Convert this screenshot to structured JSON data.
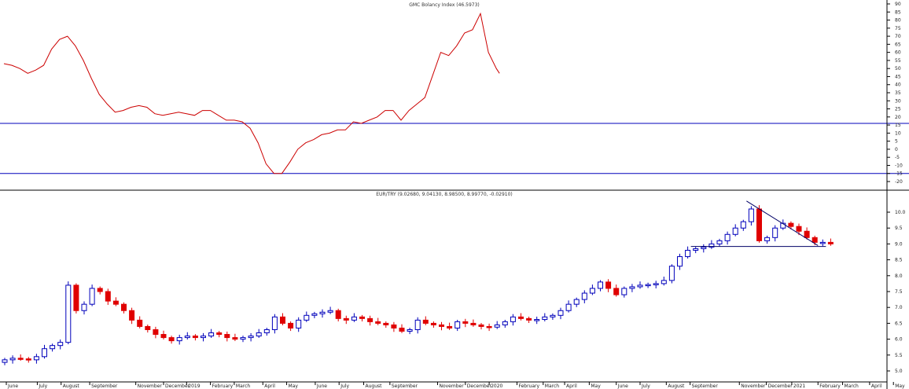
{
  "colors": {
    "indicator_line": "#cc0000",
    "threshold_line": "#0000bb",
    "candle_up": "#0000bb",
    "candle_down": "#e00000",
    "trendline": "#000066",
    "axis": "#000000"
  },
  "chart_data": [
    {
      "type": "line",
      "title": "GMC Bolancy Index (46.5973)",
      "ylim": [
        -25,
        92
      ],
      "yticks": [
        90,
        85,
        80,
        75,
        70,
        65,
        60,
        55,
        50,
        45,
        40,
        35,
        30,
        25,
        20,
        15,
        10,
        5,
        0,
        -5,
        -10,
        -15,
        -20
      ],
      "thresholds": [
        16,
        -15
      ],
      "series": [
        {
          "x": [
            0,
            0.5,
            1,
            1.5,
            2,
            2.5,
            3,
            3.5,
            4,
            4.5,
            5,
            5.5,
            6,
            6.5,
            7,
            7.5,
            8,
            8.5,
            9,
            9.5,
            10,
            10.5,
            11,
            11.5,
            12,
            12.5,
            13,
            13.5,
            14,
            14.5,
            15,
            15.5,
            16,
            16.5,
            17,
            17.5,
            18,
            18.5,
            19,
            19.5,
            20,
            20.5,
            21,
            21.5,
            22,
            22.5,
            23,
            23.5,
            24,
            24.5,
            25,
            25.5,
            26,
            26.5,
            27,
            27.5,
            28,
            28.5,
            29,
            29.5,
            30,
            30.5,
            31,
            31.2
          ],
          "y": [
            53,
            52,
            50,
            47,
            49,
            52,
            62,
            68,
            70,
            64,
            55,
            44,
            34,
            28,
            23,
            24,
            26,
            27,
            26,
            22,
            21,
            22,
            23,
            22,
            21,
            24,
            24,
            21,
            18,
            18,
            17,
            13,
            4,
            -9,
            -15,
            -15,
            -8,
            0,
            4,
            6,
            9,
            10,
            12,
            12,
            17,
            16,
            18,
            20,
            24,
            24,
            18,
            24,
            28,
            32,
            46,
            60,
            58,
            64,
            72,
            74,
            84,
            60,
            50,
            47
          ],
          "values": [
            53,
            52,
            50,
            47,
            49,
            52,
            62,
            68,
            70,
            64,
            55,
            44,
            34,
            28,
            23,
            24,
            26,
            27,
            26,
            22,
            21,
            22,
            23,
            22,
            21,
            24,
            24,
            21,
            18,
            18,
            17,
            13,
            4,
            -9,
            -15,
            -15,
            -8,
            0,
            4,
            6,
            9,
            10,
            12,
            12,
            17,
            16,
            18,
            20,
            24,
            24,
            18,
            24,
            28,
            32,
            46,
            60,
            58,
            64,
            72,
            74,
            84,
            60,
            50,
            47
          ]
        }
      ]
    },
    {
      "type": "candlestick",
      "title": "EUR/TRY (9.02680, 9.04130, 8.98500, 8.99770, -0.02910)",
      "ylim": [
        4.8,
        10.5
      ],
      "yticks": [
        10.0,
        9.5,
        9.0,
        8.5,
        8.0,
        7.5,
        7.0,
        6.5,
        6.0,
        5.5,
        5.0
      ],
      "close": [
        5.35,
        5.4,
        5.38,
        5.35,
        5.45,
        5.7,
        5.8,
        5.9,
        7.7,
        6.9,
        7.1,
        7.6,
        7.5,
        7.2,
        7.1,
        6.9,
        6.6,
        6.4,
        6.3,
        6.15,
        6.05,
        5.95,
        6.05,
        6.1,
        6.05,
        6.1,
        6.2,
        6.15,
        6.05,
        6.0,
        6.05,
        6.1,
        6.2,
        6.3,
        6.7,
        6.5,
        6.35,
        6.6,
        6.75,
        6.8,
        6.85,
        6.9,
        6.65,
        6.6,
        6.7,
        6.65,
        6.55,
        6.5,
        6.45,
        6.35,
        6.25,
        6.3,
        6.6,
        6.5,
        6.45,
        6.4,
        6.35,
        6.55,
        6.5,
        6.45,
        6.4,
        6.38,
        6.45,
        6.55,
        6.7,
        6.65,
        6.6,
        6.62,
        6.7,
        6.75,
        6.9,
        7.1,
        7.25,
        7.45,
        7.6,
        7.8,
        7.6,
        7.4,
        7.6,
        7.65,
        7.7,
        7.72,
        7.75,
        7.85,
        8.3,
        8.6,
        8.8,
        8.85,
        8.9,
        9.0,
        9.1,
        9.3,
        9.5,
        9.7,
        10.1,
        9.1,
        9.2,
        9.5,
        9.65,
        9.55,
        9.4,
        9.2,
        9.05,
        9.05,
        9.0
      ],
      "trendline_points": [
        [
          93.5,
          10.35
        ],
        [
          102.5,
          8.95
        ]
      ],
      "support_level": 8.92
    }
  ],
  "x_axis": {
    "labels": [
      {
        "text": "June",
        "x": 0.3
      },
      {
        "text": "July",
        "x": 4.2
      },
      {
        "text": "August",
        "x": 7.2
      },
      {
        "text": "September",
        "x": 10.8
      },
      {
        "text": "November",
        "x": 16.6
      },
      {
        "text": "December",
        "x": 20.1
      },
      {
        "text": "2019",
        "x": 23.0
      },
      {
        "text": "February",
        "x": 26.0
      },
      {
        "text": "March",
        "x": 29.0
      },
      {
        "text": "April",
        "x": 32.6
      },
      {
        "text": "May",
        "x": 35.6
      },
      {
        "text": "June",
        "x": 39.2
      },
      {
        "text": "July",
        "x": 42.2
      },
      {
        "text": "August",
        "x": 45.3
      },
      {
        "text": "September",
        "x": 48.6
      },
      {
        "text": "November",
        "x": 54.6
      },
      {
        "text": "December",
        "x": 58.1
      },
      {
        "text": "2020",
        "x": 61.1
      },
      {
        "text": "February",
        "x": 64.6
      },
      {
        "text": "March",
        "x": 67.9
      },
      {
        "text": "April",
        "x": 70.6
      },
      {
        "text": "May",
        "x": 73.7
      },
      {
        "text": "June",
        "x": 77.1
      },
      {
        "text": "July",
        "x": 80.1
      },
      {
        "text": "August",
        "x": 83.4
      },
      {
        "text": "September",
        "x": 86.4
      },
      {
        "text": "November",
        "x": 92.6
      },
      {
        "text": "December",
        "x": 96.0
      },
      {
        "text": "2021",
        "x": 99.2
      },
      {
        "text": "February",
        "x": 102.5
      },
      {
        "text": "March",
        "x": 105.6
      },
      {
        "text": "April",
        "x": 109.0
      },
      {
        "text": "May",
        "x": 112.0
      }
    ]
  }
}
